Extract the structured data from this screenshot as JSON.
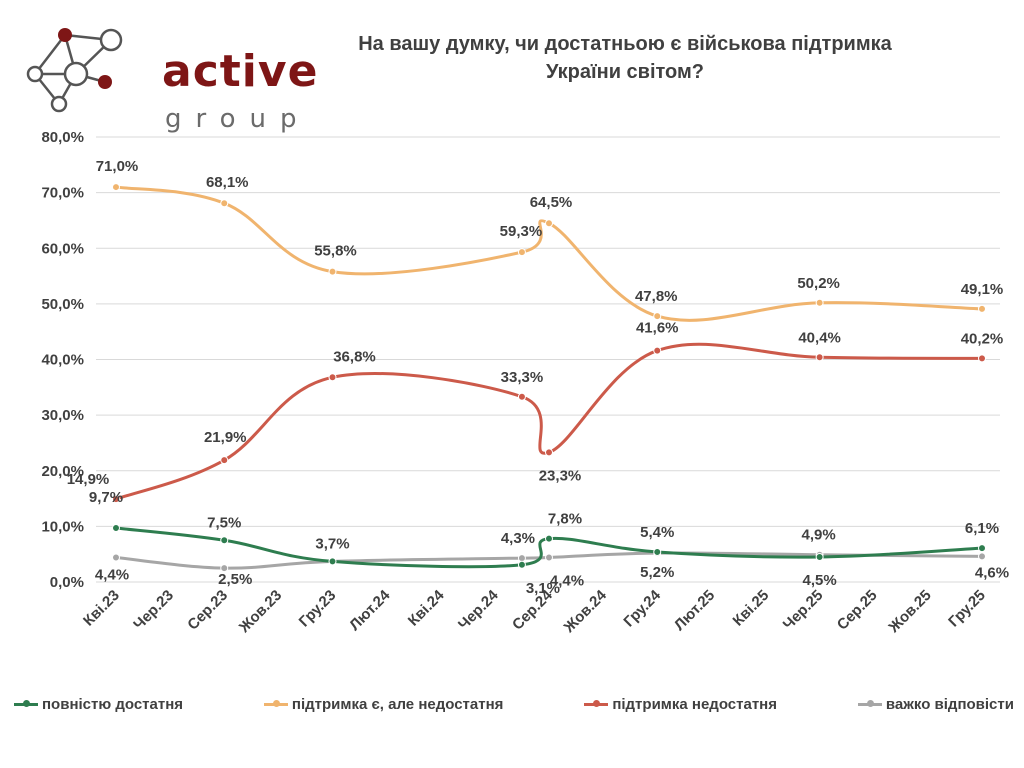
{
  "logo": {
    "word": "active",
    "sub": "group"
  },
  "title_lines": [
    "На вашу думку, чи достатньою є військова підтримка",
    "України світом?"
  ],
  "chart_data": {
    "type": "line",
    "title": "На вашу думку, чи достатньою є військова підтримка України світом?",
    "categories": [
      "Кві.23",
      "Чер.23",
      "Сер.23",
      "Жов.23",
      "Гру.23",
      "Лют.24",
      "Кві.24",
      "Чер.24",
      "Сер.24",
      "Жов.24",
      "Гру.24",
      "Лют.25",
      "Кві.25",
      "Чер.25",
      "Сер.25",
      "Жов.25",
      "Гру.25"
    ],
    "ylim": [
      0,
      80
    ],
    "yticks": [
      0,
      10,
      20,
      30,
      40,
      50,
      60,
      70,
      80
    ],
    "ytick_labels": [
      "0,0%",
      "10,0%",
      "20,0%",
      "30,0%",
      "40,0%",
      "50,0%",
      "60,0%",
      "70,0%",
      "80,0%"
    ],
    "grid": true,
    "legend": "bottom",
    "series": [
      {
        "name": "повністю достатня",
        "color": "#2e7d4f",
        "points": [
          {
            "x": 0,
            "y": 9.7,
            "label": "9,7%"
          },
          {
            "x": 2,
            "y": 7.5,
            "label": "7,5%"
          },
          {
            "x": 4,
            "y": 3.7,
            "label": "3,7%"
          },
          {
            "x": 7.5,
            "y": 3.1,
            "label": "3,1%"
          },
          {
            "x": 8,
            "y": 7.8,
            "label": "7,8%"
          },
          {
            "x": 10,
            "y": 5.4,
            "label": "5,4%"
          },
          {
            "x": 13,
            "y": 4.5,
            "label": "4,5%"
          },
          {
            "x": 16,
            "y": 6.1,
            "label": "6,1%"
          }
        ]
      },
      {
        "name": "підтримка є, але недостатня",
        "color": "#f0b46e",
        "points": [
          {
            "x": 0,
            "y": 71.0,
            "label": "71,0%"
          },
          {
            "x": 2,
            "y": 68.1,
            "label": "68,1%"
          },
          {
            "x": 4,
            "y": 55.8,
            "label": "55,8%"
          },
          {
            "x": 7.5,
            "y": 59.3,
            "label": "59,3%"
          },
          {
            "x": 8,
            "y": 64.5,
            "label": "64,5%"
          },
          {
            "x": 10,
            "y": 47.8,
            "label": "47,8%"
          },
          {
            "x": 13,
            "y": 50.2,
            "label": "50,2%"
          },
          {
            "x": 16,
            "y": 49.1,
            "label": "49,1%"
          }
        ]
      },
      {
        "name": "підтримка недостатня",
        "color": "#cc5a4a",
        "points": [
          {
            "x": 0,
            "y": 14.9,
            "label": "14,9%"
          },
          {
            "x": 2,
            "y": 21.9,
            "label": "21,9%"
          },
          {
            "x": 4,
            "y": 36.8,
            "label": "36,8%"
          },
          {
            "x": 7.5,
            "y": 33.3,
            "label": "33,3%"
          },
          {
            "x": 8,
            "y": 23.3,
            "label": "23,3%"
          },
          {
            "x": 10,
            "y": 41.6,
            "label": "41,6%"
          },
          {
            "x": 13,
            "y": 40.4,
            "label": "40,4%"
          },
          {
            "x": 16,
            "y": 40.2,
            "label": "40,2%"
          }
        ]
      },
      {
        "name": "важко відповісти",
        "color": "#a6a6a6",
        "points": [
          {
            "x": 0,
            "y": 4.4,
            "label": "4,4%"
          },
          {
            "x": 2,
            "y": 2.5,
            "label": "2,5%"
          },
          {
            "x": 4,
            "y": 3.7,
            "label": ""
          },
          {
            "x": 7.5,
            "y": 4.3,
            "label": "4,3%"
          },
          {
            "x": 8,
            "y": 4.4,
            "label": "4,4%"
          },
          {
            "x": 10,
            "y": 5.2,
            "label": "5,2%"
          },
          {
            "x": 13,
            "y": 4.9,
            "label": "4,9%"
          },
          {
            "x": 16,
            "y": 4.6,
            "label": "4,6%"
          }
        ]
      }
    ]
  }
}
